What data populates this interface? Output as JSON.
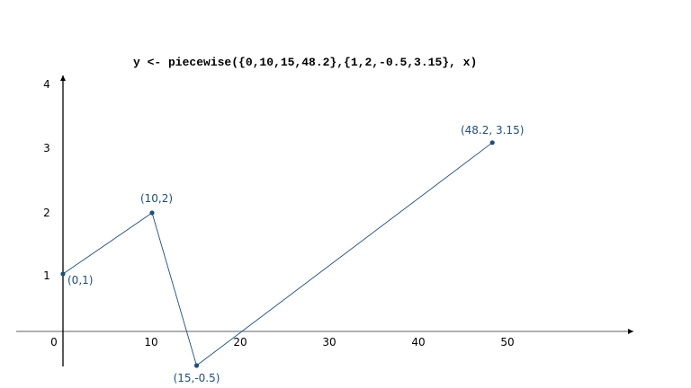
{
  "title": "y <- piecewise({0,10,15,48.2},{1,2,-0.5,3.15}, x)",
  "chart_data": {
    "type": "line",
    "title": "y <- piecewise({0,10,15,48.2},{1,2,-0.5,3.15}, x)",
    "x": [
      0,
      10,
      15,
      48.2
    ],
    "y": [
      1,
      2,
      -0.5,
      3.15
    ],
    "point_labels": [
      "(0,1)",
      "(10,2)",
      "(15,-0.5)",
      "(48.2, 3.15)"
    ],
    "x_ticks": [
      "0",
      "10",
      "20",
      "30",
      "40",
      "50"
    ],
    "x_tick_values": [
      0,
      10,
      20,
      30,
      40,
      50
    ],
    "y_ticks": [
      "1",
      "2",
      "3",
      "4"
    ],
    "y_tick_values": [
      1,
      2,
      3,
      4
    ],
    "grid": false,
    "colors": {
      "line": "#1f4e79",
      "label": "#1f4e79",
      "y_axis": "#000000",
      "x_axis": "#808080"
    }
  }
}
